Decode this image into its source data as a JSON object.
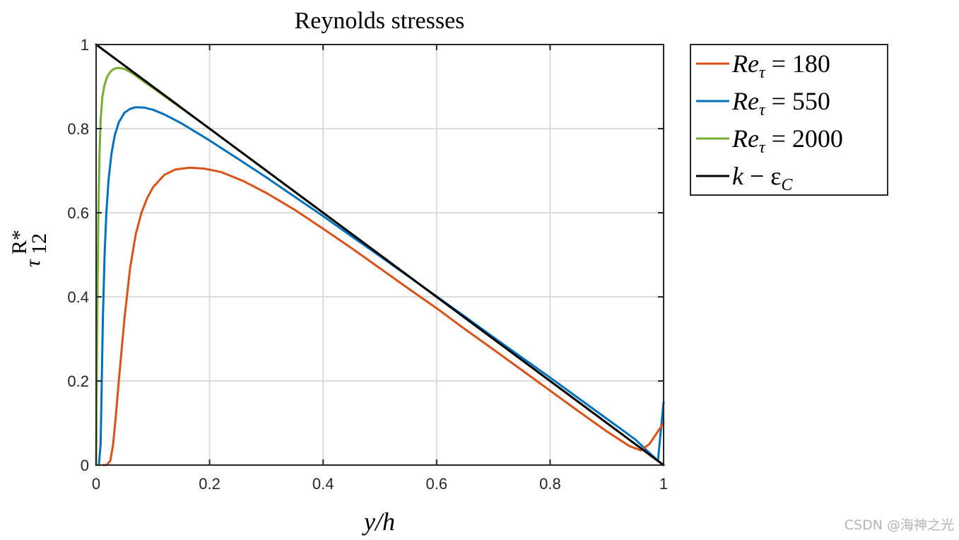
{
  "chart_data": {
    "type": "line",
    "title": "Reynolds stresses",
    "xlabel": "y/h",
    "ylabel": {
      "base": "τ",
      "sup": "R*",
      "sub": "12"
    },
    "xlim": [
      0,
      1
    ],
    "ylim": [
      0,
      1
    ],
    "xticks": [
      "0",
      "0.2",
      "0.4",
      "0.6",
      "0.8",
      "1"
    ],
    "yticks": [
      "0",
      "0.2",
      "0.4",
      "0.6",
      "0.8",
      "1"
    ],
    "xtick_values": [
      0,
      0.2,
      0.4,
      0.6,
      0.8,
      1
    ],
    "ytick_values": [
      0,
      0.2,
      0.4,
      0.6,
      0.8,
      1
    ],
    "grid": true,
    "legend_position": "outside-top-right",
    "series": [
      {
        "name": "Re_τ = 180",
        "label_main": "Re",
        "label_sub": "τ",
        "label_rest": " = 180",
        "color": "#d95319",
        "x": [
          0.012,
          0.018,
          0.025,
          0.03,
          0.035,
          0.04,
          0.05,
          0.06,
          0.07,
          0.08,
          0.09,
          0.1,
          0.12,
          0.14,
          0.165,
          0.19,
          0.22,
          0.26,
          0.3,
          0.35,
          0.4,
          0.45,
          0.5,
          0.55,
          0.6,
          0.65,
          0.7,
          0.75,
          0.8,
          0.85,
          0.9,
          0.94,
          0.96,
          0.975,
          0.99,
          1.0
        ],
        "y": [
          0.0,
          0.0,
          0.01,
          0.05,
          0.12,
          0.2,
          0.35,
          0.47,
          0.55,
          0.6,
          0.635,
          0.66,
          0.69,
          0.703,
          0.707,
          0.705,
          0.697,
          0.675,
          0.647,
          0.607,
          0.562,
          0.516,
          0.468,
          0.42,
          0.373,
          0.323,
          0.275,
          0.226,
          0.177,
          0.128,
          0.08,
          0.045,
          0.035,
          0.05,
          0.08,
          0.1
        ]
      },
      {
        "name": "Re_τ = 550",
        "label_main": "Re",
        "label_sub": "τ",
        "label_rest": " = 550",
        "color": "#0072bd",
        "x": [
          0.005,
          0.008,
          0.01,
          0.012,
          0.015,
          0.018,
          0.022,
          0.027,
          0.033,
          0.04,
          0.05,
          0.06,
          0.07,
          0.085,
          0.1,
          0.12,
          0.15,
          0.2,
          0.25,
          0.3,
          0.35,
          0.4,
          0.45,
          0.5,
          0.55,
          0.6,
          0.65,
          0.7,
          0.75,
          0.8,
          0.85,
          0.9,
          0.95,
          0.99,
          0.995,
          1.0
        ],
        "y": [
          0.0,
          0.05,
          0.2,
          0.35,
          0.5,
          0.6,
          0.68,
          0.74,
          0.785,
          0.815,
          0.838,
          0.847,
          0.851,
          0.85,
          0.845,
          0.834,
          0.813,
          0.772,
          0.728,
          0.684,
          0.638,
          0.592,
          0.544,
          0.497,
          0.449,
          0.401,
          0.353,
          0.304,
          0.256,
          0.208,
          0.159,
          0.11,
          0.061,
          0.01,
          0.08,
          0.15
        ]
      },
      {
        "name": "Re_τ = 2000",
        "label_main": "Re",
        "label_sub": "τ",
        "label_rest": " = 2000",
        "color": "#77ac30",
        "x": [
          0.0,
          0.002,
          0.004,
          0.006,
          0.008,
          0.011,
          0.015,
          0.02,
          0.025,
          0.03,
          0.036,
          0.042,
          0.05,
          0.06,
          0.07,
          0.08,
          0.1,
          0.13,
          0.2,
          0.3,
          0.4,
          0.5,
          0.6,
          0.7,
          0.8,
          0.9,
          1.0
        ],
        "y": [
          0.0,
          0.35,
          0.6,
          0.74,
          0.82,
          0.875,
          0.905,
          0.925,
          0.935,
          0.941,
          0.944,
          0.944,
          0.942,
          0.935,
          0.926,
          0.916,
          0.897,
          0.868,
          0.8,
          0.7,
          0.6,
          0.5,
          0.4,
          0.3,
          0.2,
          0.1,
          0.0
        ]
      },
      {
        "name": "k − ε_C",
        "label_main": "k",
        "label_sub": "C",
        "label_rest": " − ε",
        "color": "#000000",
        "x": [
          0.0,
          1.0
        ],
        "y": [
          1.0,
          0.0
        ]
      }
    ]
  },
  "watermark": "CSDN @海神之光"
}
